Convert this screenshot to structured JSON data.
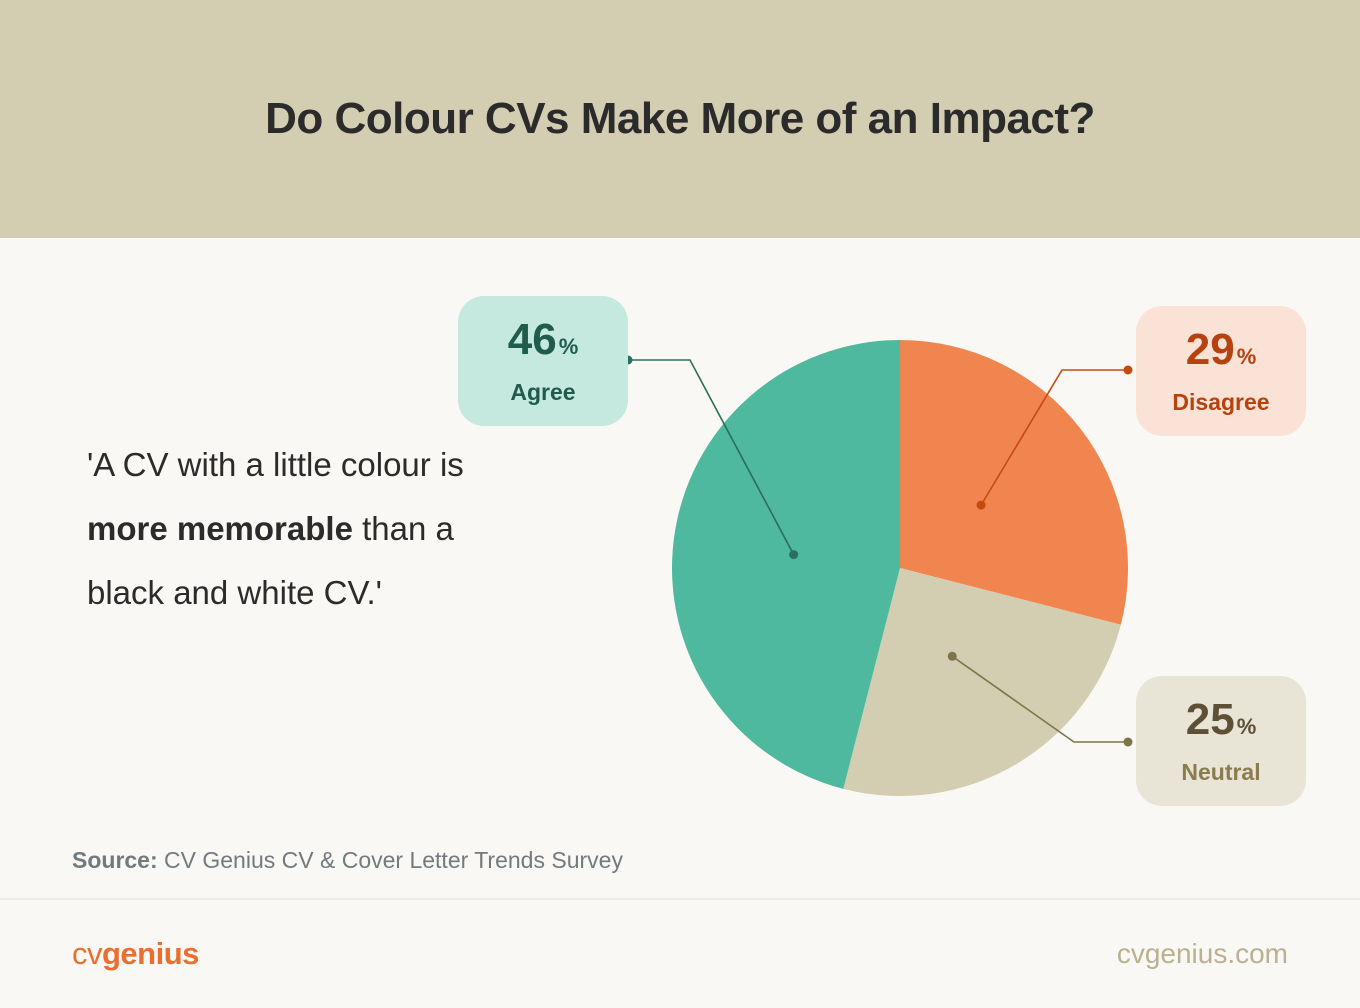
{
  "header": {
    "title": "Do Colour CVs Make More of an Impact?"
  },
  "quote": {
    "part1": "'A CV with a little colour is ",
    "bold1": "more memorable",
    "part2": " than a black and white CV.'"
  },
  "source": {
    "label": "Source:",
    "text": " CV Genius CV & Cover Letter Trends Survey"
  },
  "footer": {
    "logo_cv": "cv",
    "logo_genius": "genius",
    "site": "cvgenius.com"
  },
  "colors": {
    "agree": "#4eb99f",
    "disagree": "#f18550",
    "neutral": "#d3cdb2"
  },
  "chart_data": {
    "type": "pie",
    "slices": [
      {
        "label": "Agree",
        "value": 46,
        "display": "46",
        "unit": "%",
        "color": "#4eb99f"
      },
      {
        "label": "Disagree",
        "value": 29,
        "display": "29",
        "unit": "%",
        "color": "#f18550"
      },
      {
        "label": "Neutral",
        "value": 25,
        "display": "25",
        "unit": "%",
        "color": "#d3cdb2"
      }
    ],
    "start": "top, clockwise from Disagree"
  }
}
